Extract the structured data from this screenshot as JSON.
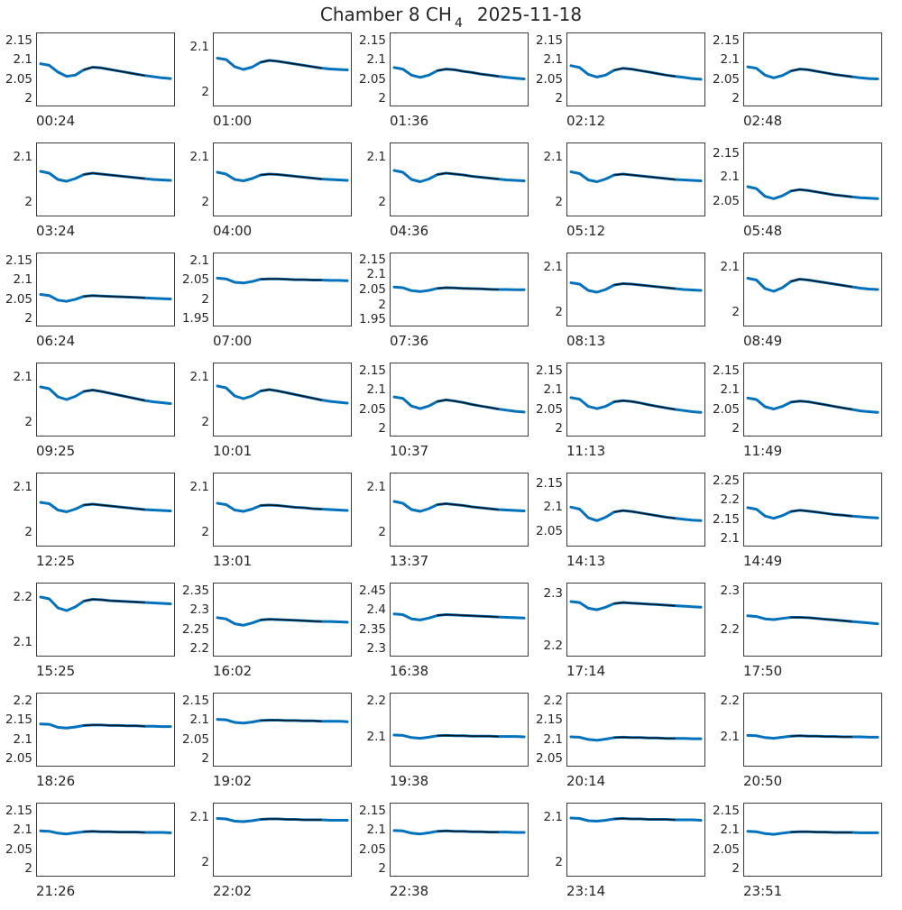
{
  "title": {
    "main": "Chamber 8 CH",
    "subscript": "4",
    "date": "2025-11-18"
  },
  "colors": {
    "line": "#0072BD",
    "overlay": "#10141c",
    "axis": "#3c3c3c",
    "text": "#262626"
  },
  "chart_data": [
    {
      "type": "line",
      "xlabel": "00:24",
      "yticks": [
        2.15,
        2.1,
        2.05,
        2
      ],
      "ylim": [
        1.98,
        2.17
      ],
      "values": [
        2.09,
        2.086,
        2.068,
        2.057,
        2.06,
        2.074,
        2.081,
        2.079,
        2.075,
        2.071,
        2.067,
        2.063,
        2.059,
        2.056,
        2.053,
        2.051
      ]
    },
    {
      "type": "line",
      "xlabel": "01:00",
      "yticks": [
        2.1,
        2
      ],
      "ylim": [
        1.97,
        2.13
      ],
      "values": [
        2.075,
        2.072,
        2.056,
        2.05,
        2.055,
        2.066,
        2.07,
        2.068,
        2.065,
        2.062,
        2.059,
        2.056,
        2.053,
        2.051,
        2.05,
        2.049
      ]
    },
    {
      "type": "line",
      "xlabel": "01:36",
      "yticks": [
        2.15,
        2.1,
        2.05,
        2
      ],
      "ylim": [
        1.98,
        2.17
      ],
      "values": [
        2.08,
        2.076,
        2.06,
        2.054,
        2.06,
        2.072,
        2.076,
        2.074,
        2.07,
        2.067,
        2.063,
        2.06,
        2.057,
        2.054,
        2.052,
        2.05
      ]
    },
    {
      "type": "line",
      "xlabel": "02:12",
      "yticks": [
        2.15,
        2.1,
        2.05,
        2
      ],
      "ylim": [
        1.98,
        2.17
      ],
      "values": [
        2.085,
        2.08,
        2.062,
        2.055,
        2.06,
        2.073,
        2.078,
        2.076,
        2.072,
        2.068,
        2.064,
        2.06,
        2.057,
        2.054,
        2.051,
        2.049
      ]
    },
    {
      "type": "line",
      "xlabel": "02:48",
      "yticks": [
        2.15,
        2.1,
        2.05,
        2
      ],
      "ylim": [
        1.98,
        2.17
      ],
      "values": [
        2.082,
        2.078,
        2.06,
        2.053,
        2.059,
        2.071,
        2.076,
        2.074,
        2.07,
        2.066,
        2.062,
        2.059,
        2.056,
        2.053,
        2.051,
        2.05
      ]
    },
    {
      "type": "line",
      "xlabel": "03:24",
      "yticks": [
        2.1,
        2
      ],
      "ylim": [
        1.97,
        2.13
      ],
      "values": [
        2.068,
        2.064,
        2.05,
        2.046,
        2.052,
        2.061,
        2.064,
        2.062,
        2.06,
        2.058,
        2.056,
        2.054,
        2.052,
        2.05,
        2.049,
        2.048
      ]
    },
    {
      "type": "line",
      "xlabel": "04:00",
      "yticks": [
        2.1,
        2
      ],
      "ylim": [
        1.97,
        2.13
      ],
      "values": [
        2.066,
        2.062,
        2.05,
        2.047,
        2.052,
        2.06,
        2.062,
        2.061,
        2.059,
        2.057,
        2.055,
        2.053,
        2.051,
        2.05,
        2.049,
        2.048
      ]
    },
    {
      "type": "line",
      "xlabel": "04:36",
      "yticks": [
        2.1,
        2
      ],
      "ylim": [
        1.97,
        2.13
      ],
      "values": [
        2.07,
        2.066,
        2.05,
        2.045,
        2.051,
        2.061,
        2.064,
        2.062,
        2.06,
        2.057,
        2.055,
        2.053,
        2.051,
        2.049,
        2.048,
        2.047
      ]
    },
    {
      "type": "line",
      "xlabel": "05:12",
      "yticks": [
        2.1,
        2
      ],
      "ylim": [
        1.97,
        2.13
      ],
      "values": [
        2.067,
        2.063,
        2.049,
        2.045,
        2.051,
        2.06,
        2.062,
        2.06,
        2.058,
        2.056,
        2.054,
        2.052,
        2.05,
        2.049,
        2.048,
        2.047
      ]
    },
    {
      "type": "line",
      "xlabel": "05:48",
      "yticks": [
        2.15,
        2.1,
        2.05
      ],
      "ylim": [
        2.02,
        2.17
      ],
      "values": [
        2.08,
        2.076,
        2.06,
        2.055,
        2.061,
        2.071,
        2.074,
        2.072,
        2.069,
        2.066,
        2.063,
        2.061,
        2.059,
        2.057,
        2.056,
        2.055
      ]
    },
    {
      "type": "line",
      "xlabel": "06:24",
      "yticks": [
        2.15,
        2.1,
        2.05,
        2
      ],
      "ylim": [
        1.98,
        2.17
      ],
      "values": [
        2.062,
        2.059,
        2.047,
        2.044,
        2.049,
        2.057,
        2.059,
        2.058,
        2.057,
        2.056,
        2.055,
        2.054,
        2.053,
        2.052,
        2.051,
        2.05
      ]
    },
    {
      "type": "line",
      "xlabel": "07:00",
      "yticks": [
        2.1,
        2.05,
        2,
        1.95
      ],
      "ylim": [
        1.93,
        2.12
      ],
      "values": [
        2.055,
        2.053,
        2.044,
        2.042,
        2.046,
        2.052,
        2.053,
        2.053,
        2.052,
        2.051,
        2.051,
        2.05,
        2.05,
        2.049,
        2.049,
        2.048
      ]
    },
    {
      "type": "line",
      "xlabel": "07:36",
      "yticks": [
        2.15,
        2.1,
        2.05,
        2,
        1.95
      ],
      "ylim": [
        1.93,
        2.17
      ],
      "values": [
        2.058,
        2.056,
        2.046,
        2.043,
        2.047,
        2.054,
        2.056,
        2.055,
        2.054,
        2.053,
        2.052,
        2.051,
        2.05,
        2.05,
        2.049,
        2.049
      ]
    },
    {
      "type": "line",
      "xlabel": "08:13",
      "yticks": [
        2.1,
        2
      ],
      "ylim": [
        1.97,
        2.13
      ],
      "values": [
        2.065,
        2.062,
        2.048,
        2.044,
        2.05,
        2.06,
        2.063,
        2.062,
        2.06,
        2.058,
        2.056,
        2.054,
        2.052,
        2.05,
        2.049,
        2.048
      ]
    },
    {
      "type": "line",
      "xlabel": "08:49",
      "yticks": [
        2.1,
        2
      ],
      "ylim": [
        1.97,
        2.13
      ],
      "values": [
        2.075,
        2.071,
        2.052,
        2.046,
        2.054,
        2.068,
        2.073,
        2.071,
        2.068,
        2.065,
        2.062,
        2.059,
        2.056,
        2.053,
        2.051,
        2.05
      ]
    },
    {
      "type": "line",
      "xlabel": "09:25",
      "yticks": [
        2.1,
        2
      ],
      "ylim": [
        1.97,
        2.13
      ],
      "values": [
        2.078,
        2.074,
        2.056,
        2.05,
        2.057,
        2.068,
        2.071,
        2.068,
        2.064,
        2.06,
        2.056,
        2.052,
        2.048,
        2.045,
        2.043,
        2.041
      ]
    },
    {
      "type": "line",
      "xlabel": "10:01",
      "yticks": [
        2.1,
        2
      ],
      "ylim": [
        1.97,
        2.13
      ],
      "values": [
        2.08,
        2.076,
        2.058,
        2.052,
        2.058,
        2.069,
        2.072,
        2.069,
        2.065,
        2.061,
        2.057,
        2.053,
        2.049,
        2.046,
        2.044,
        2.042
      ]
    },
    {
      "type": "line",
      "xlabel": "10:37",
      "yticks": [
        2.15,
        2.1,
        2.05,
        2
      ],
      "ylim": [
        1.98,
        2.17
      ],
      "values": [
        2.082,
        2.078,
        2.058,
        2.051,
        2.058,
        2.07,
        2.074,
        2.071,
        2.067,
        2.062,
        2.058,
        2.054,
        2.05,
        2.047,
        2.044,
        2.042
      ]
    },
    {
      "type": "line",
      "xlabel": "11:13",
      "yticks": [
        2.15,
        2.1,
        2.05,
        2
      ],
      "ylim": [
        1.98,
        2.17
      ],
      "values": [
        2.08,
        2.076,
        2.057,
        2.051,
        2.057,
        2.069,
        2.072,
        2.07,
        2.066,
        2.061,
        2.057,
        2.053,
        2.049,
        2.046,
        2.043,
        2.041
      ]
    },
    {
      "type": "line",
      "xlabel": "11:49",
      "yticks": [
        2.15,
        2.1,
        2.05,
        2
      ],
      "ylim": [
        1.98,
        2.17
      ],
      "values": [
        2.079,
        2.075,
        2.056,
        2.05,
        2.057,
        2.068,
        2.071,
        2.069,
        2.065,
        2.061,
        2.057,
        2.053,
        2.049,
        2.045,
        2.043,
        2.041
      ]
    },
    {
      "type": "line",
      "xlabel": "12:25",
      "yticks": [
        2.1,
        2
      ],
      "ylim": [
        1.97,
        2.13
      ],
      "values": [
        2.066,
        2.063,
        2.049,
        2.045,
        2.051,
        2.06,
        2.062,
        2.06,
        2.058,
        2.056,
        2.054,
        2.052,
        2.05,
        2.049,
        2.048,
        2.047
      ]
    },
    {
      "type": "line",
      "xlabel": "13:01",
      "yticks": [
        2.1,
        2
      ],
      "ylim": [
        1.97,
        2.13
      ],
      "values": [
        2.064,
        2.061,
        2.049,
        2.046,
        2.051,
        2.059,
        2.06,
        2.059,
        2.057,
        2.055,
        2.054,
        2.052,
        2.051,
        2.05,
        2.049,
        2.048
      ]
    },
    {
      "type": "line",
      "xlabel": "13:37",
      "yticks": [
        2.1,
        2
      ],
      "ylim": [
        1.97,
        2.13
      ],
      "values": [
        2.068,
        2.064,
        2.05,
        2.046,
        2.052,
        2.061,
        2.063,
        2.061,
        2.059,
        2.056,
        2.054,
        2.052,
        2.05,
        2.049,
        2.048,
        2.047
      ]
    },
    {
      "type": "line",
      "xlabel": "14:13",
      "yticks": [
        2.15,
        2.1,
        2.05
      ],
      "ylim": [
        2.02,
        2.17
      ],
      "values": [
        2.1,
        2.096,
        2.078,
        2.072,
        2.079,
        2.09,
        2.093,
        2.091,
        2.088,
        2.085,
        2.082,
        2.079,
        2.077,
        2.075,
        2.073,
        2.072
      ]
    },
    {
      "type": "line",
      "xlabel": "14:49",
      "yticks": [
        2.25,
        2.2,
        2.15,
        2.1
      ],
      "ylim": [
        2.08,
        2.27
      ],
      "values": [
        2.18,
        2.176,
        2.158,
        2.152,
        2.159,
        2.17,
        2.173,
        2.171,
        2.168,
        2.165,
        2.162,
        2.16,
        2.158,
        2.156,
        2.154,
        2.153
      ]
    },
    {
      "type": "line",
      "xlabel": "15:25",
      "yticks": [
        2.2,
        2.1
      ],
      "ylim": [
        2.07,
        2.23
      ],
      "values": [
        2.2,
        2.196,
        2.176,
        2.17,
        2.178,
        2.191,
        2.195,
        2.194,
        2.192,
        2.191,
        2.19,
        2.189,
        2.188,
        2.187,
        2.186,
        2.185
      ]
    },
    {
      "type": "line",
      "xlabel": "16:02",
      "yticks": [
        2.35,
        2.3,
        2.25,
        2.2
      ],
      "ylim": [
        2.18,
        2.37
      ],
      "values": [
        2.28,
        2.277,
        2.264,
        2.26,
        2.266,
        2.274,
        2.276,
        2.275,
        2.274,
        2.273,
        2.272,
        2.271,
        2.27,
        2.27,
        2.269,
        2.268
      ]
    },
    {
      "type": "line",
      "xlabel": "16:38",
      "yticks": [
        2.45,
        2.4,
        2.35,
        2.3
      ],
      "ylim": [
        2.28,
        2.47
      ],
      "values": [
        2.39,
        2.388,
        2.377,
        2.374,
        2.379,
        2.386,
        2.388,
        2.387,
        2.386,
        2.385,
        2.384,
        2.383,
        2.382,
        2.381,
        2.38,
        2.379
      ]
    },
    {
      "type": "line",
      "xlabel": "17:14",
      "yticks": [
        2.3,
        2.2
      ],
      "ylim": [
        2.18,
        2.32
      ],
      "values": [
        2.285,
        2.283,
        2.272,
        2.269,
        2.274,
        2.281,
        2.283,
        2.282,
        2.281,
        2.28,
        2.279,
        2.278,
        2.277,
        2.276,
        2.275,
        2.274
      ]
    },
    {
      "type": "line",
      "xlabel": "17:50",
      "yticks": [
        2.3,
        2.2
      ],
      "ylim": [
        2.13,
        2.32
      ],
      "values": [
        2.235,
        2.233,
        2.227,
        2.225,
        2.228,
        2.231,
        2.231,
        2.23,
        2.228,
        2.226,
        2.224,
        2.222,
        2.22,
        2.218,
        2.216,
        2.214
      ]
    },
    {
      "type": "line",
      "xlabel": "18:26",
      "yticks": [
        2.2,
        2.15,
        2.1,
        2.05
      ],
      "ylim": [
        2.03,
        2.22
      ],
      "values": [
        2.14,
        2.139,
        2.131,
        2.129,
        2.132,
        2.136,
        2.137,
        2.137,
        2.136,
        2.136,
        2.135,
        2.135,
        2.134,
        2.134,
        2.133,
        2.133
      ]
    },
    {
      "type": "line",
      "xlabel": "19:02",
      "yticks": [
        2.15,
        2.1,
        2.05,
        2
      ],
      "ylim": [
        1.98,
        2.17
      ],
      "values": [
        2.102,
        2.101,
        2.094,
        2.092,
        2.095,
        2.099,
        2.1,
        2.1,
        2.099,
        2.099,
        2.098,
        2.098,
        2.097,
        2.097,
        2.097,
        2.096
      ]
    },
    {
      "type": "line",
      "xlabel": "19:38",
      "yticks": [
        2.2,
        2.1
      ],
      "ylim": [
        2.02,
        2.22
      ],
      "values": [
        2.105,
        2.104,
        2.098,
        2.096,
        2.099,
        2.103,
        2.104,
        2.103,
        2.103,
        2.102,
        2.102,
        2.102,
        2.101,
        2.101,
        2.101,
        2.1
      ]
    },
    {
      "type": "line",
      "xlabel": "20:14",
      "yticks": [
        2.2,
        2.15,
        2.1,
        2.05
      ],
      "ylim": [
        2.03,
        2.22
      ],
      "values": [
        2.106,
        2.105,
        2.099,
        2.097,
        2.1,
        2.104,
        2.105,
        2.104,
        2.104,
        2.103,
        2.103,
        2.102,
        2.102,
        2.102,
        2.101,
        2.101
      ]
    },
    {
      "type": "line",
      "xlabel": "20:50",
      "yticks": [
        2.2,
        2.1
      ],
      "ylim": [
        2.02,
        2.22
      ],
      "values": [
        2.104,
        2.103,
        2.098,
        2.096,
        2.099,
        2.102,
        2.103,
        2.102,
        2.102,
        2.101,
        2.101,
        2.1,
        2.1,
        2.1,
        2.099,
        2.099
      ]
    },
    {
      "type": "line",
      "xlabel": "21:26",
      "yticks": [
        2.15,
        2.1,
        2.05,
        2
      ],
      "ylim": [
        1.98,
        2.17
      ],
      "values": [
        2.098,
        2.097,
        2.092,
        2.09,
        2.093,
        2.096,
        2.097,
        2.096,
        2.096,
        2.095,
        2.095,
        2.095,
        2.094,
        2.094,
        2.094,
        2.093
      ]
    },
    {
      "type": "line",
      "xlabel": "22:02",
      "yticks": [
        2.1,
        2
      ],
      "ylim": [
        1.97,
        2.13
      ],
      "values": [
        2.097,
        2.096,
        2.091,
        2.09,
        2.092,
        2.095,
        2.096,
        2.096,
        2.095,
        2.095,
        2.094,
        2.094,
        2.094,
        2.093,
        2.093,
        2.093
      ]
    },
    {
      "type": "line",
      "xlabel": "22:38",
      "yticks": [
        2.15,
        2.1,
        2.05,
        2
      ],
      "ylim": [
        1.98,
        2.17
      ],
      "values": [
        2.099,
        2.098,
        2.092,
        2.09,
        2.093,
        2.097,
        2.098,
        2.097,
        2.097,
        2.096,
        2.096,
        2.095,
        2.095,
        2.095,
        2.094,
        2.094
      ]
    },
    {
      "type": "line",
      "xlabel": "23:14",
      "yticks": [
        2.1,
        2
      ],
      "ylim": [
        1.97,
        2.13
      ],
      "values": [
        2.098,
        2.097,
        2.092,
        2.091,
        2.093,
        2.096,
        2.097,
        2.096,
        2.096,
        2.095,
        2.095,
        2.095,
        2.094,
        2.094,
        2.094,
        2.093
      ]
    },
    {
      "type": "line",
      "xlabel": "23:51",
      "yticks": [
        2.15,
        2.1,
        2.05,
        2
      ],
      "ylim": [
        1.98,
        2.17
      ],
      "values": [
        2.097,
        2.096,
        2.091,
        2.089,
        2.092,
        2.095,
        2.096,
        2.096,
        2.095,
        2.095,
        2.094,
        2.094,
        2.094,
        2.093,
        2.093,
        2.093
      ]
    }
  ]
}
